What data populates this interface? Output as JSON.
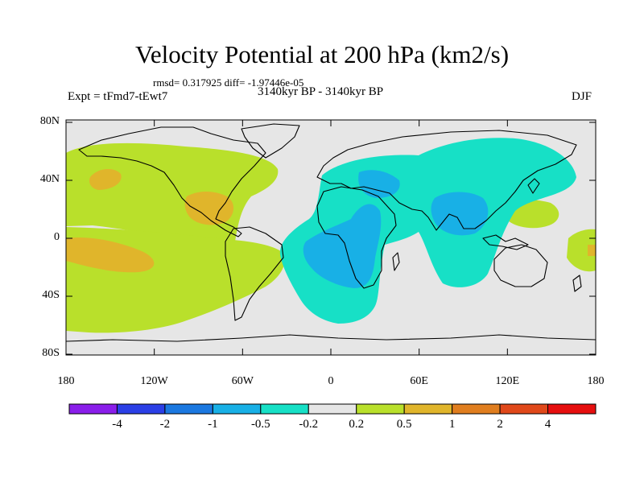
{
  "title": "Velocity Potential at 200 hPa (km2/s)",
  "stats_line": "rmsd= 0.317925 diff= -1.97446e-05",
  "experiment": "Expt = tFmd7-tEwt7",
  "period": "3140kyr BP - 3140kyr BP",
  "season": "DJF",
  "y_ticks": [
    {
      "label": "80N",
      "lat": 80
    },
    {
      "label": "40N",
      "lat": 40
    },
    {
      "label": "0",
      "lat": 0
    },
    {
      "label": "40S",
      "lat": -40
    },
    {
      "label": "80S",
      "lat": -80
    }
  ],
  "x_ticks": [
    {
      "label": "180",
      "lon": -180
    },
    {
      "label": "120W",
      "lon": -120
    },
    {
      "label": "60W",
      "lon": -60
    },
    {
      "label": "0",
      "lon": 0
    },
    {
      "label": "60E",
      "lon": 60
    },
    {
      "label": "120E",
      "lon": 120
    },
    {
      "label": "180",
      "lon": 180
    }
  ],
  "colorbar": {
    "colors": [
      "#8a1eea",
      "#2b3fe6",
      "#1b78e0",
      "#18b0e6",
      "#17e0c6",
      "#e6e6e6",
      "#b9e02b",
      "#e0b52b",
      "#e07e1f",
      "#e0481a",
      "#e60f0f"
    ],
    "labels": [
      "-4",
      "-2",
      "-1",
      "-0.5",
      "-0.2",
      "0.2",
      "0.5",
      "1",
      "2",
      "4"
    ]
  },
  "field_colors": {
    "background": "#e6e6e6",
    "pos_weak": "#b9e02b",
    "pos_mid": "#e0b52b",
    "neg_weak": "#17e0c6",
    "neg_mid": "#18b0e6"
  }
}
